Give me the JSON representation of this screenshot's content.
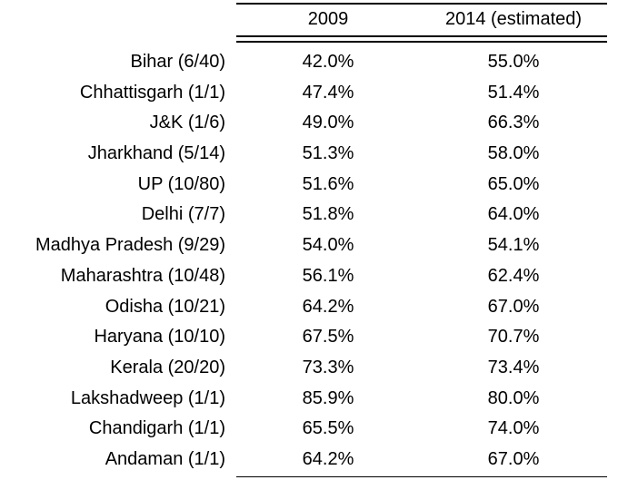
{
  "table": {
    "columns": [
      "2009",
      "2014 (estimated)"
    ],
    "rows": [
      {
        "label": "Bihar (6/40)",
        "v2009": "42.0%",
        "v2014": "55.0%"
      },
      {
        "label": "Chhattisgarh (1/1)",
        "v2009": "47.4%",
        "v2014": "51.4%"
      },
      {
        "label": "J&K (1/6)",
        "v2009": "49.0%",
        "v2014": "66.3%"
      },
      {
        "label": "Jharkhand (5/14)",
        "v2009": "51.3%",
        "v2014": "58.0%"
      },
      {
        "label": "UP (10/80)",
        "v2009": "51.6%",
        "v2014": "65.0%"
      },
      {
        "label": "Delhi (7/7)",
        "v2009": "51.8%",
        "v2014": "64.0%"
      },
      {
        "label": "Madhya Pradesh (9/29)",
        "v2009": "54.0%",
        "v2014": "54.1%"
      },
      {
        "label": "Maharashtra (10/48)",
        "v2009": "56.1%",
        "v2014": "62.4%"
      },
      {
        "label": "Odisha (10/21)",
        "v2009": "64.2%",
        "v2014": "67.0%"
      },
      {
        "label": "Haryana (10/10)",
        "v2009": "67.5%",
        "v2014": "70.7%"
      },
      {
        "label": "Kerala (20/20)",
        "v2009": "73.3%",
        "v2014": "73.4%"
      },
      {
        "label": "Lakshadweep (1/1)",
        "v2009": "85.9%",
        "v2014": "80.0%"
      },
      {
        "label": "Chandigarh (1/1)",
        "v2009": "65.5%",
        "v2014": "74.0%"
      },
      {
        "label": "Andaman (1/1)",
        "v2009": "64.2%",
        "v2014": "67.0%"
      }
    ]
  }
}
